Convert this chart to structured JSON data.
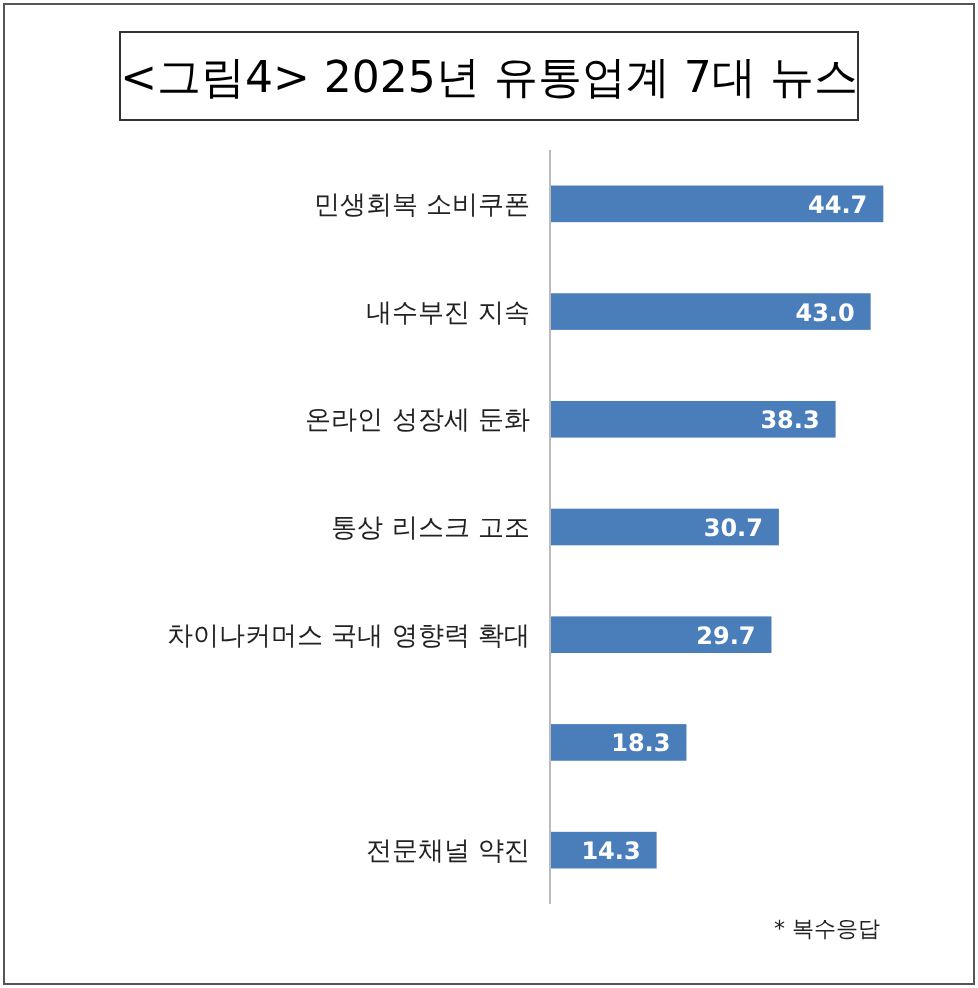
{
  "chart_data": {
    "type": "bar",
    "orientation": "horizontal",
    "title": "<그림4> 2025년 유통업계 7대 뉴스",
    "categories": [
      "민생회복 소비쿠폰",
      "내수부진 지속",
      "온라인 성장세 둔화",
      "통상 리스크 고조",
      "차이나커머스 국내 영향력 확대",
      null,
      "전문채널 약진"
    ],
    "values": [
      44.7,
      43.0,
      38.3,
      30.7,
      29.7,
      18.3,
      14.3
    ],
    "value_labels": [
      "44.7",
      "43.0",
      "38.3",
      "30.7",
      "29.7",
      "18.3",
      "14.3"
    ],
    "color": "#4a7ebb",
    "annotations": [
      "* 복수응답"
    ]
  }
}
